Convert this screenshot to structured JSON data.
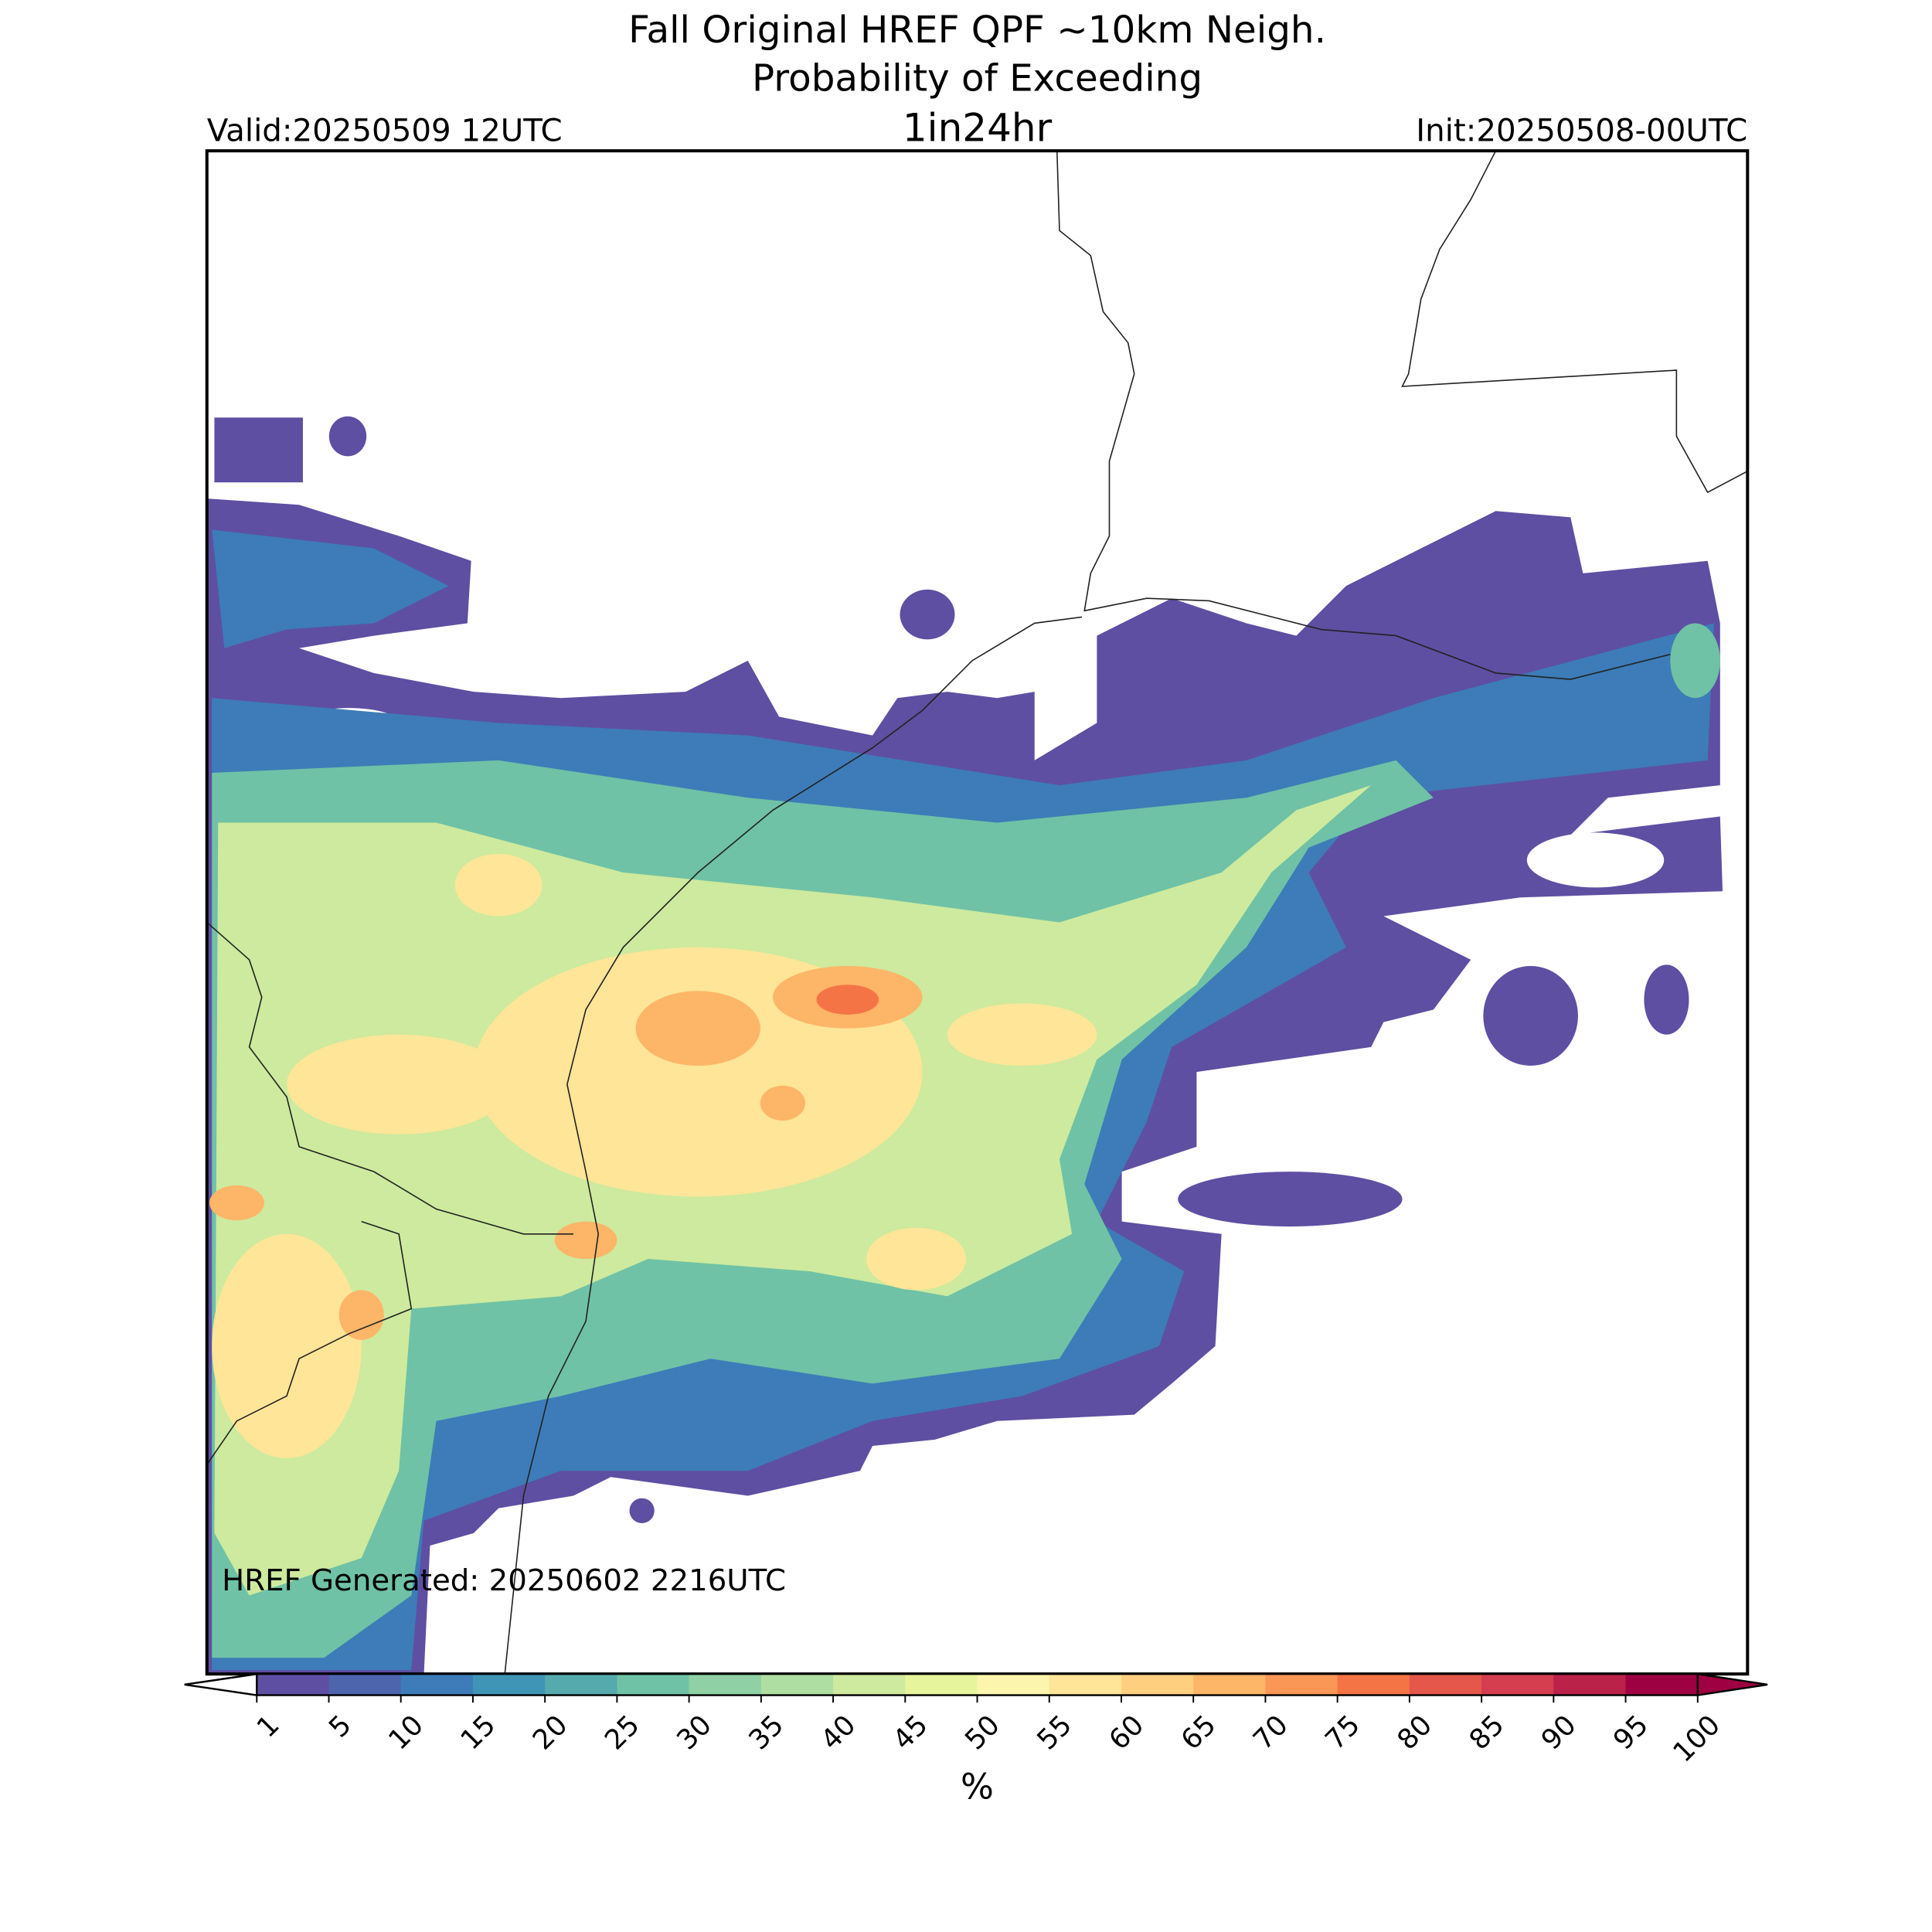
{
  "header": {
    "title": "Fall Original HREF QPF ~10km Neigh.",
    "subtitle": "Probability of Exceeding",
    "valid": "Valid:20250509 12UTC",
    "period": "1in24hr",
    "init": "Init:20250508-00UTC"
  },
  "map": {
    "footnote": "HREF Generated: 20250602 2216UTC"
  },
  "colorbar": {
    "label": "%",
    "ticks": [
      1,
      5,
      10,
      15,
      20,
      25,
      30,
      35,
      40,
      45,
      50,
      55,
      60,
      65,
      70,
      75,
      80,
      85,
      90,
      95,
      100
    ],
    "colors": [
      "#5e4fa2",
      "#4d65ad",
      "#3d7cb8",
      "#3f95b6",
      "#55aaad",
      "#6fc2a5",
      "#8fd1a4",
      "#afdea2",
      "#cdea9e",
      "#e6f59b",
      "#fcf5ae",
      "#fee597",
      "#fecf7e",
      "#fdb567",
      "#fa9656",
      "#f47445",
      "#e5564b",
      "#d53e4f",
      "#bb2249",
      "#9e0142"
    ],
    "over_color": "#9e0142"
  }
}
